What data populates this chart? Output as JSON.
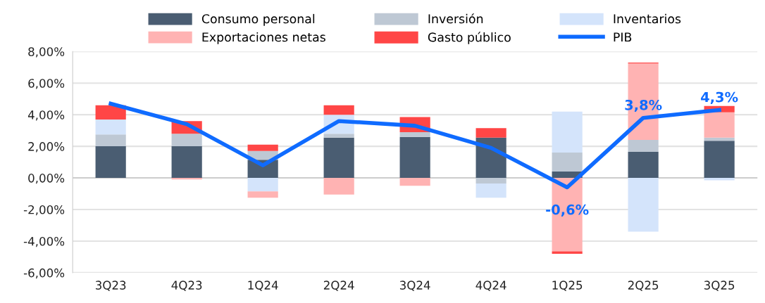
{
  "chart_data": {
    "type": "bar",
    "stacked": true,
    "categories": [
      "3Q23",
      "4Q23",
      "1Q24",
      "2Q24",
      "3Q24",
      "4Q24",
      "1Q25",
      "2Q25",
      "3Q25"
    ],
    "series": [
      {
        "name": "Consumo personal",
        "color": "#4a5d72",
        "values": [
          2.0,
          2.0,
          1.15,
          2.55,
          2.6,
          2.55,
          0.4,
          1.65,
          2.35
        ]
      },
      {
        "name": "Inversión",
        "color": "#bec8d4",
        "values": [
          0.75,
          0.8,
          0.55,
          0.25,
          0.3,
          -0.35,
          1.2,
          0.75,
          0.2
        ]
      },
      {
        "name": "Inventarios",
        "color": "#d4e4fb",
        "values": [
          0.95,
          null,
          -0.85,
          1.2,
          null,
          -0.9,
          2.6,
          -3.4,
          -0.15
        ]
      },
      {
        "name": "Exportaciones netas",
        "color": "#ffb3b3",
        "values": [
          null,
          -0.1,
          -0.4,
          -1.05,
          -0.5,
          null,
          -4.65,
          4.85,
          1.6
        ]
      },
      {
        "name": "Gasto público",
        "color": "#ff4646",
        "values": [
          0.9,
          0.8,
          0.4,
          0.6,
          0.95,
          0.6,
          -0.15,
          0.05,
          0.4
        ]
      },
      {
        "name": "PIB",
        "type": "line",
        "color": "#0f6bff",
        "values": [
          4.7,
          3.4,
          0.8,
          3.6,
          3.3,
          1.9,
          -0.6,
          3.8,
          4.3
        ],
        "value_labels": [
          null,
          null,
          null,
          null,
          null,
          null,
          "-0,6%",
          "3,8%",
          "4,3%"
        ]
      }
    ],
    "ylim": [
      -6,
      8
    ],
    "yticks": [
      {
        "value": -6,
        "label": "-6,00%"
      },
      {
        "value": -4,
        "label": "-4,00%"
      },
      {
        "value": -2,
        "label": "-2,00%"
      },
      {
        "value": 0,
        "label": "0,00%"
      },
      {
        "value": 2,
        "label": "2,00%"
      },
      {
        "value": 4,
        "label": "4,00%"
      },
      {
        "value": 6,
        "label": "6,00%"
      },
      {
        "value": 8,
        "label": "8,00%"
      }
    ],
    "grid": "y",
    "legend": "top"
  }
}
